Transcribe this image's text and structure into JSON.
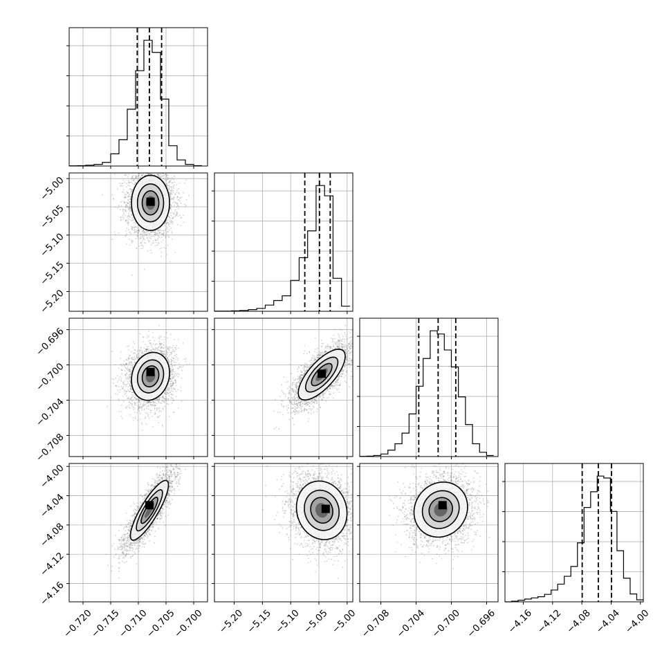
{
  "chart_data": {
    "type": "corner",
    "grid": true,
    "parameters": [
      {
        "range": [
          -0.7225,
          -0.6975
        ],
        "ticks": [
          -0.72,
          -0.715,
          -0.71,
          -0.705,
          -0.7
        ],
        "tick_labels": [
          "−0.720",
          "−0.715",
          "−0.710",
          "−0.705",
          "−0.700"
        ]
      },
      {
        "range": [
          -5.235,
          -4.99
        ],
        "ticks": [
          -5.2,
          -5.15,
          -5.1,
          -5.05,
          -5.0
        ],
        "tick_labels": [
          "−5.20",
          "−5.15",
          "−5.10",
          "−5.05",
          "−5.00"
        ]
      },
      {
        "range": [
          -0.7104,
          -0.6947
        ],
        "ticks": [
          -0.708,
          -0.704,
          -0.7,
          -0.696
        ],
        "tick_labels": [
          "−0.708",
          "−0.704",
          "−0.700",
          "−0.696"
        ]
      },
      {
        "range": [
          -4.185,
          -3.996
        ],
        "ticks": [
          -4.16,
          -4.12,
          -4.08,
          -4.04,
          -4.0
        ],
        "tick_labels": [
          "−4.16",
          "−4.12",
          "−4.08",
          "−4.04",
          "−4.00"
        ]
      }
    ],
    "histograms": [
      {
        "bin_edges": [
          -0.7225,
          -0.721,
          -0.7195,
          -0.718,
          -0.7165,
          -0.715,
          -0.7135,
          -0.712,
          -0.7105,
          -0.709,
          -0.7075,
          -0.706,
          -0.7045,
          -0.703,
          -0.7015,
          -0.7,
          -0.6985
        ],
        "counts": [
          1,
          2,
          4,
          8,
          18,
          60,
          130,
          280,
          470,
          620,
          560,
          330,
          100,
          30,
          8,
          2
        ],
        "quantiles": [
          -0.7102,
          -0.708,
          -0.7058
        ]
      },
      {
        "bin_edges": [
          -5.235,
          -5.22,
          -5.205,
          -5.19,
          -5.175,
          -5.16,
          -5.145,
          -5.13,
          -5.115,
          -5.1,
          -5.085,
          -5.07,
          -5.055,
          -5.04,
          -5.025,
          -5.01,
          -4.995
        ],
        "counts": [
          1,
          1,
          2,
          4,
          8,
          14,
          30,
          52,
          75,
          150,
          260,
          390,
          610,
          560,
          160,
          25
        ],
        "quantiles": [
          -5.075,
          -5.049,
          -5.03
        ]
      },
      {
        "bin_edges": [
          -0.7104,
          -0.7096,
          -0.7088,
          -0.708,
          -0.7072,
          -0.7064,
          -0.7056,
          -0.7048,
          -0.704,
          -0.7032,
          -0.7024,
          -0.7016,
          -0.7008,
          -0.7,
          -0.6992,
          -0.6984,
          -0.6976,
          -0.6968,
          -0.696,
          -0.6952
        ],
        "counts": [
          1,
          2,
          5,
          12,
          30,
          60,
          110,
          200,
          330,
          460,
          590,
          575,
          500,
          420,
          280,
          150,
          60,
          20,
          5
        ],
        "quantiles": [
          -0.7037,
          -0.7015,
          -0.6995
        ]
      },
      {
        "bin_edges": [
          -4.185,
          -4.176,
          -4.167,
          -4.158,
          -4.149,
          -4.14,
          -4.131,
          -4.122,
          -4.113,
          -4.104,
          -4.095,
          -4.086,
          -4.077,
          -4.068,
          -4.059,
          -4.05,
          -4.041,
          -4.032,
          -4.023,
          -4.014,
          -4.005,
          -3.996
        ],
        "counts": [
          0,
          3,
          8,
          14,
          20,
          26,
          38,
          60,
          90,
          130,
          180,
          300,
          480,
          560,
          640,
          630,
          460,
          260,
          120,
          40,
          10
        ],
        "quantiles": [
          -4.0795,
          -4.0575,
          -4.0395
        ]
      }
    ],
    "pairs": [
      {
        "x": 0,
        "y": 1,
        "mean": [
          -0.7078,
          -5.043
        ],
        "sd": [
          0.00215,
          0.0305
        ],
        "rho": 0.0,
        "n": 3000,
        "peak": [
          -0.7078,
          -5.041
        ],
        "contour_scale": [
          1.6,
          1.1,
          0.7,
          0.4
        ]
      },
      {
        "x": 0,
        "y": 2,
        "mean": [
          -0.7078,
          -0.7013
        ],
        "sd": [
          0.00215,
          0.0017
        ],
        "rho": 0.15,
        "n": 3000,
        "peak": [
          -0.7078,
          -0.7008
        ],
        "contour_scale": [
          1.6,
          1.1,
          0.7,
          0.4
        ]
      },
      {
        "x": 1,
        "y": 2,
        "mean": [
          -5.045,
          -0.7011
        ],
        "sd": [
          0.026,
          0.0018
        ],
        "rho": 0.72,
        "n": 3000,
        "peak": [
          -5.045,
          -0.701
        ],
        "contour_scale": [
          1.6,
          1.1,
          0.7,
          0.4
        ]
      },
      {
        "x": 0,
        "y": 3,
        "mean": [
          -0.708,
          -4.06
        ],
        "sd": [
          0.00215,
          0.0255
        ],
        "rho": 0.85,
        "n": 3000,
        "peak": [
          -0.708,
          -4.053
        ],
        "contour_scale": [
          1.6,
          1.1,
          0.7,
          0.4
        ]
      },
      {
        "x": 1,
        "y": 3,
        "mean": [
          -5.045,
          -4.06
        ],
        "sd": [
          0.028,
          0.025
        ],
        "rho": -0.1,
        "n": 3000,
        "peak": [
          -5.038,
          -4.058
        ],
        "contour_scale": [
          1.6,
          1.1,
          0.7,
          0.4
        ]
      },
      {
        "x": 2,
        "y": 3,
        "mean": [
          -0.7012,
          -4.059
        ],
        "sd": [
          0.0019,
          0.0235
        ],
        "rho": 0.1,
        "n": 3000,
        "peak": [
          -0.701,
          -4.053
        ],
        "contour_scale": [
          1.6,
          1.1,
          0.7,
          0.4
        ]
      }
    ]
  }
}
